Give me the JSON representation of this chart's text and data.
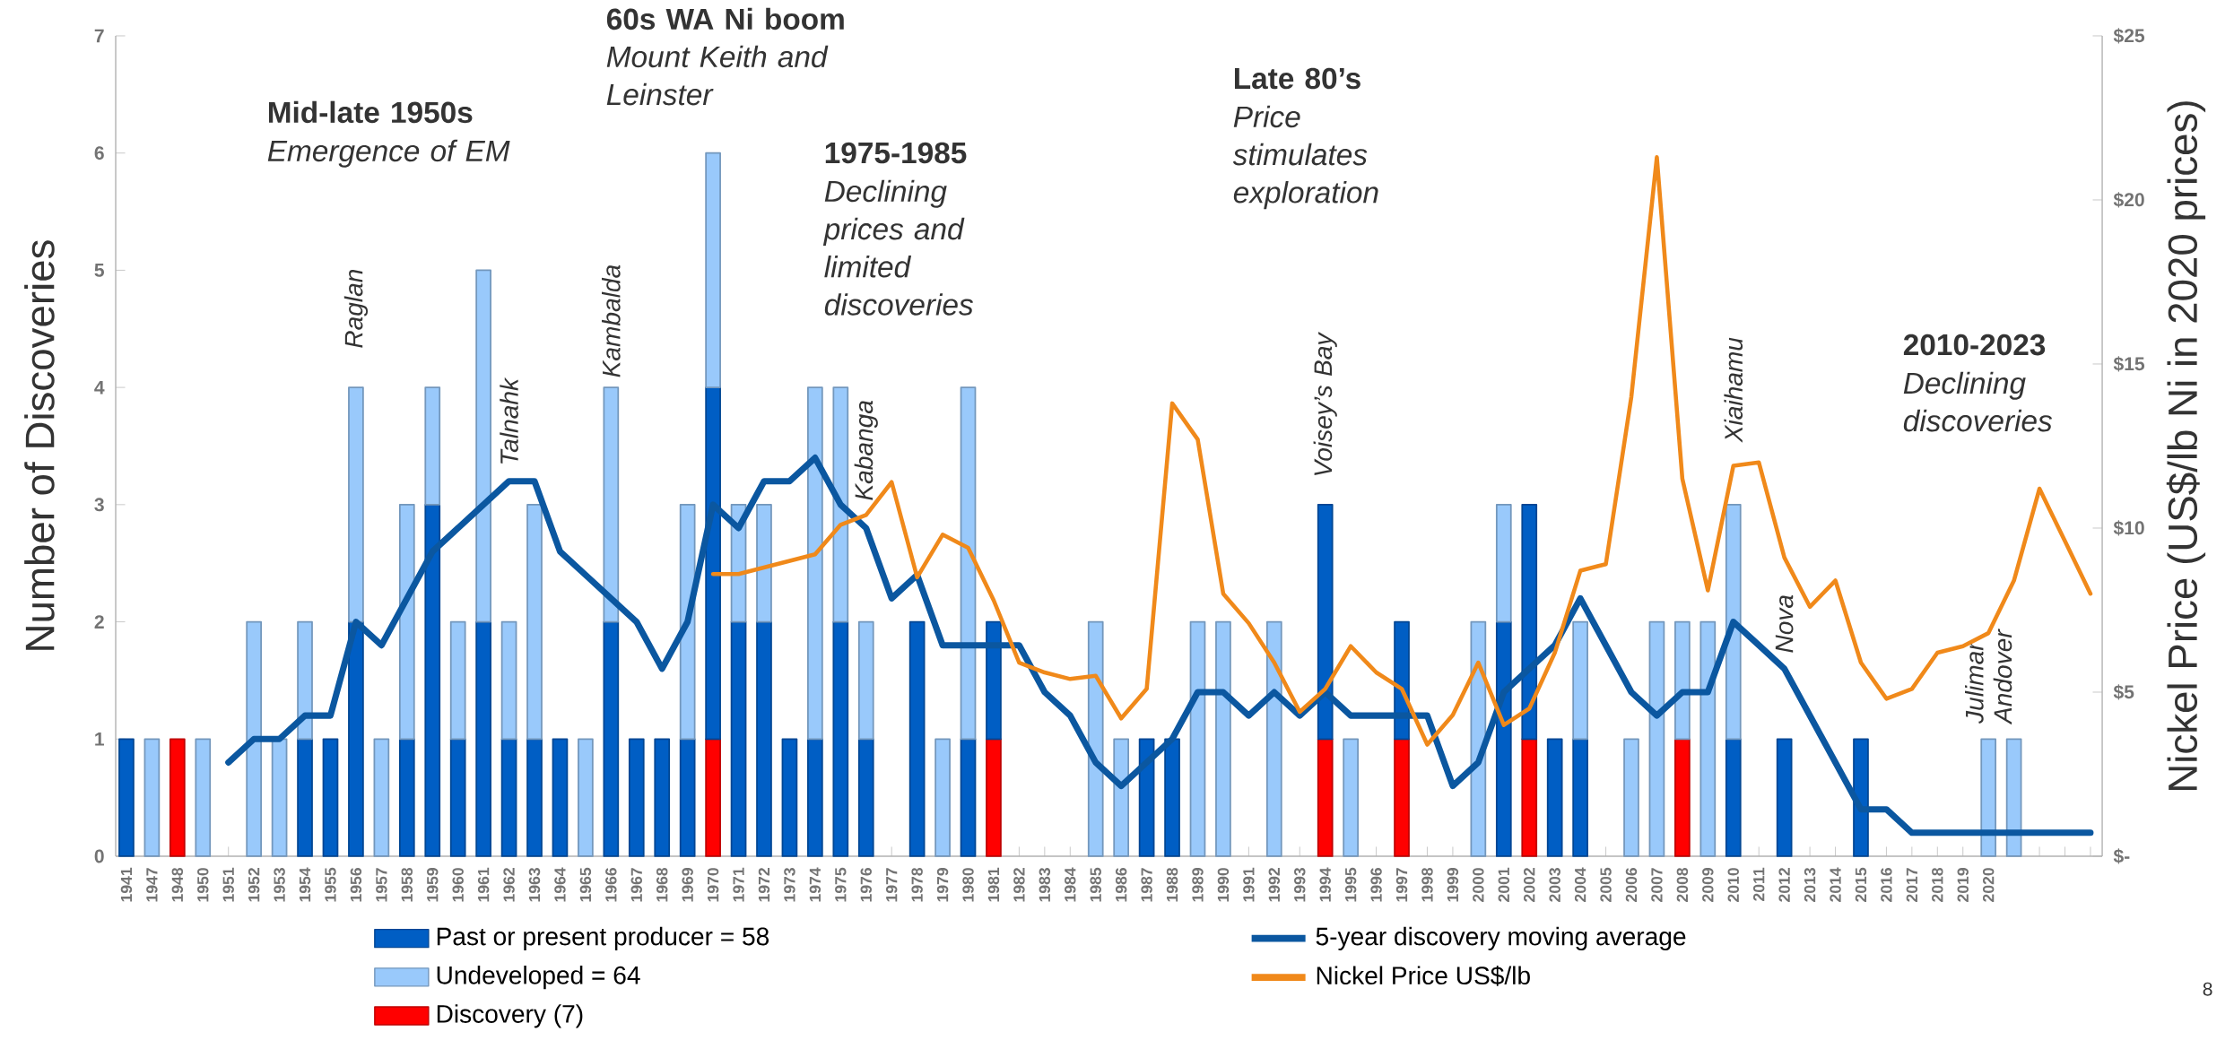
{
  "chart_data": {
    "type": "bar",
    "stacked": true,
    "categories": [
      "1941",
      "1947",
      "1948",
      "1950",
      "1951",
      "1952",
      "1953",
      "1954",
      "1955",
      "1956",
      "1957",
      "1958",
      "1959",
      "1960",
      "1961",
      "1962",
      "1963",
      "1964",
      "1965",
      "1966",
      "1967",
      "1968",
      "1969",
      "1970",
      "1971",
      "1972",
      "1973",
      "1974",
      "1975",
      "1976",
      "1977",
      "1978",
      "1979",
      "1980",
      "1981",
      "1982",
      "1983",
      "1984",
      "1985",
      "1986",
      "1987",
      "1988",
      "1989",
      "1990",
      "1991",
      "1992",
      "1993",
      "1994",
      "1995",
      "1996",
      "1997",
      "1998",
      "1999",
      "2000",
      "2001",
      "2002",
      "2003",
      "2004",
      "2005",
      "2006",
      "2007",
      "2008",
      "2009",
      "2010",
      "2011",
      "2012",
      "2013",
      "2014",
      "2015",
      "2016",
      "2017",
      "2018",
      "2019",
      "2020",
      null,
      null,
      null,
      null
    ],
    "ylabel": "Number of Discoveries",
    "y2label": "Nickel Price (US$/lb Ni in 2020 prices)",
    "ylim": [
      0,
      7
    ],
    "yticks": [
      0,
      1,
      2,
      3,
      4,
      5,
      6,
      7
    ],
    "y2lim": [
      0,
      25
    ],
    "y2ticks": [
      {
        "value": 0,
        "label": "$-"
      },
      {
        "value": 5,
        "label": "$5"
      },
      {
        "value": 10,
        "label": "$10"
      },
      {
        "value": 15,
        "label": "$15"
      },
      {
        "value": 20,
        "label": "$20"
      },
      {
        "value": 25,
        "label": "$25"
      }
    ],
    "legend": "bottom",
    "series": [
      {
        "name": "Discovery (7)",
        "color": "#ff0000",
        "values": [
          null,
          null,
          1,
          null,
          null,
          null,
          null,
          null,
          null,
          null,
          null,
          null,
          null,
          null,
          null,
          null,
          null,
          null,
          null,
          null,
          null,
          null,
          null,
          1,
          null,
          null,
          null,
          null,
          null,
          null,
          null,
          null,
          null,
          null,
          1,
          null,
          null,
          null,
          null,
          null,
          null,
          null,
          null,
          null,
          null,
          null,
          null,
          1,
          null,
          null,
          1,
          null,
          null,
          null,
          null,
          1,
          null,
          null,
          null,
          null,
          null,
          1,
          null,
          null,
          null,
          null,
          null,
          null,
          null,
          null,
          null,
          null,
          null,
          null,
          null,
          null,
          null,
          null
        ]
      },
      {
        "name": "Past or present producer = 58",
        "color": "#005ec4",
        "values": [
          1,
          null,
          null,
          null,
          null,
          null,
          null,
          1,
          1,
          2,
          null,
          1,
          3,
          1,
          2,
          1,
          1,
          1,
          null,
          2,
          1,
          1,
          1,
          3,
          2,
          2,
          1,
          1,
          2,
          1,
          null,
          2,
          null,
          1,
          1,
          null,
          null,
          null,
          null,
          null,
          1,
          1,
          null,
          null,
          null,
          null,
          null,
          2,
          null,
          null,
          1,
          null,
          null,
          null,
          2,
          2,
          1,
          1,
          null,
          null,
          null,
          null,
          null,
          1,
          null,
          1,
          null,
          null,
          1,
          null,
          null,
          null,
          null,
          null,
          null,
          null,
          null,
          null
        ]
      },
      {
        "name": "Undeveloped = 64",
        "color": "#99c9fb",
        "values": [
          null,
          1,
          null,
          1,
          null,
          2,
          1,
          1,
          null,
          2,
          1,
          2,
          1,
          1,
          3,
          1,
          2,
          null,
          1,
          2,
          null,
          null,
          2,
          2,
          1,
          1,
          null,
          3,
          2,
          1,
          null,
          null,
          1,
          3,
          null,
          null,
          null,
          null,
          2,
          1,
          null,
          null,
          2,
          2,
          null,
          2,
          null,
          null,
          1,
          null,
          null,
          null,
          null,
          2,
          1,
          null,
          null,
          1,
          null,
          1,
          2,
          1,
          2,
          2,
          null,
          null,
          null,
          null,
          null,
          null,
          null,
          null,
          null,
          1,
          1,
          null,
          null,
          null
        ]
      },
      {
        "name": "5-year discovery moving average",
        "type": "line",
        "color": "#0b57a0",
        "values": [
          null,
          null,
          null,
          null,
          0.8,
          1.0,
          1.0,
          1.2,
          1.2,
          2.0,
          1.8,
          2.2,
          2.6,
          2.8,
          3.0,
          3.2,
          3.2,
          2.6,
          2.4,
          2.2,
          2.0,
          1.6,
          2.0,
          3.0,
          2.8,
          3.2,
          3.2,
          3.4,
          3.0,
          2.8,
          2.2,
          2.4,
          1.8,
          1.8,
          1.8,
          1.8,
          1.4,
          1.2,
          0.8,
          0.6,
          0.8,
          1.0,
          1.4,
          1.4,
          1.2,
          1.4,
          1.2,
          1.4,
          1.2,
          1.2,
          1.2,
          1.2,
          0.6,
          0.8,
          1.4,
          1.6,
          1.8,
          2.2,
          1.8,
          1.4,
          1.2,
          1.4,
          1.4,
          2.0,
          1.8,
          1.6,
          1.2,
          0.8,
          0.4,
          0.4,
          0.2,
          0.2,
          0.2,
          0.2,
          0.2,
          0.2,
          0.2,
          0.2
        ]
      },
      {
        "name": "Nickel Price US$/lb",
        "type": "line",
        "axis": "y2",
        "color": "#f0891a",
        "values": [
          null,
          null,
          null,
          null,
          null,
          null,
          null,
          null,
          null,
          null,
          null,
          null,
          null,
          null,
          null,
          null,
          null,
          null,
          null,
          null,
          null,
          null,
          null,
          8.6,
          8.6,
          8.8,
          9.0,
          9.2,
          10.1,
          10.4,
          11.4,
          8.5,
          9.8,
          9.4,
          7.8,
          5.9,
          5.6,
          5.4,
          5.5,
          4.2,
          5.1,
          13.8,
          12.7,
          8.0,
          7.1,
          5.9,
          4.4,
          5.1,
          6.4,
          5.6,
          5.1,
          3.4,
          4.3,
          5.9,
          4.0,
          4.5,
          6.2,
          8.7,
          8.9,
          14.0,
          21.3,
          11.5,
          8.1,
          11.9,
          12.0,
          9.1,
          7.6,
          8.4,
          5.9,
          4.8,
          5.1,
          6.2,
          6.4,
          6.8,
          8.4,
          11.2,
          9.6,
          8.0
        ]
      }
    ],
    "annotations": [
      "Mid-late 1950s",
      "Emergence of EM",
      "60s WA Ni boom",
      "Mount Keith and Leinster",
      "1975-1985",
      "Declining prices and limited discoveries",
      "Late 80’s",
      "Price stimulates exploration",
      "2010-2023",
      "Declining discoveries",
      "8",
      "Raglan",
      "Talnahk",
      "Kambalda",
      "Kabanga",
      "Voisey’s Bay",
      "Xiaihamu",
      "Nova",
      "Julimar Andover"
    ]
  }
}
